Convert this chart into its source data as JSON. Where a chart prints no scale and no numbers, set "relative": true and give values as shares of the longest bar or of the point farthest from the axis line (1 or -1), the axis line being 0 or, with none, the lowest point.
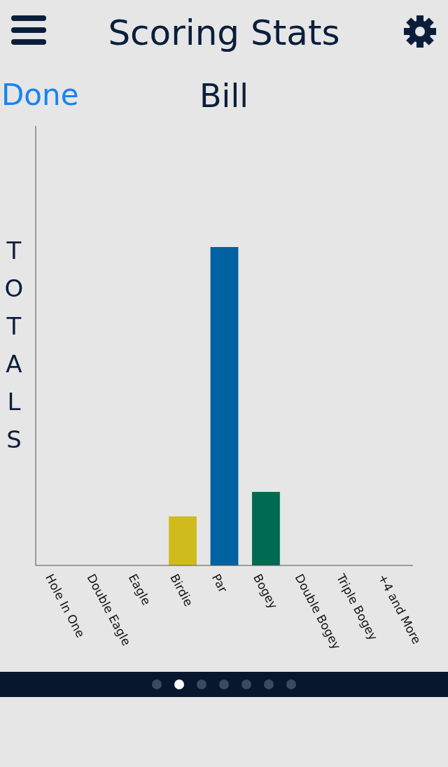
{
  "chart_data": {
    "type": "bar",
    "title": "Scoring Stats",
    "subtitle": "Bill",
    "ylabel": "TOTALS",
    "annotations": [
      "Done"
    ],
    "relative": true,
    "categories": [
      "Hole In One",
      "Double Eagle",
      "Eagle",
      "Birdie",
      "Par",
      "Bogey",
      "Double Bogey",
      "Triple Bogey",
      "+4 and More"
    ],
    "values": [
      0,
      0,
      0,
      0.154,
      1,
      0.231,
      0,
      0,
      0
    ],
    "colors": [
      "#cfbb1c",
      "#cfbb1c",
      "#cfbb1c",
      "#cfbb1c",
      "#0062a0",
      "#006b50",
      "#006b50",
      "#006b50",
      "#006b50"
    ]
  }
}
